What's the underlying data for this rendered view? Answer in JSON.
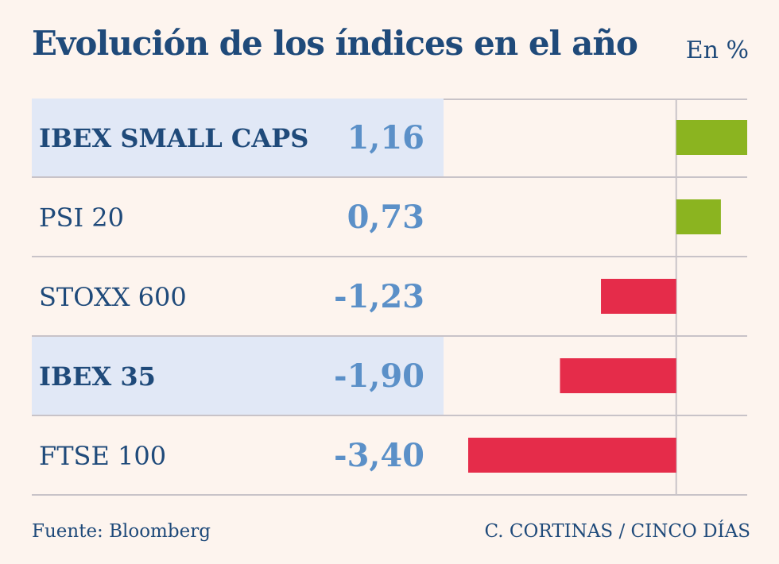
{
  "chart_data": {
    "type": "bar",
    "orientation": "horizontal",
    "title": "Evolución de los índices en el año",
    "unit": "En %",
    "categories": [
      "IBEX SMALL CAPS",
      "PSI 20",
      "STOXX 600",
      "IBEX 35",
      "FTSE 100"
    ],
    "values": [
      1.16,
      0.73,
      -1.23,
      -1.9,
      -3.4
    ],
    "value_labels": [
      "1,16",
      "0,73",
      "-1,23",
      "-1,90",
      "-3,40"
    ],
    "highlighted": [
      true,
      false,
      false,
      true,
      false
    ],
    "xlim": [
      -3.4,
      1.16
    ],
    "positive_color": "#8bb420",
    "negative_color": "#e52c4a",
    "source": "Fuente: Bloomberg",
    "credit": "C. CORTINAS / CINCO DÍAS"
  }
}
